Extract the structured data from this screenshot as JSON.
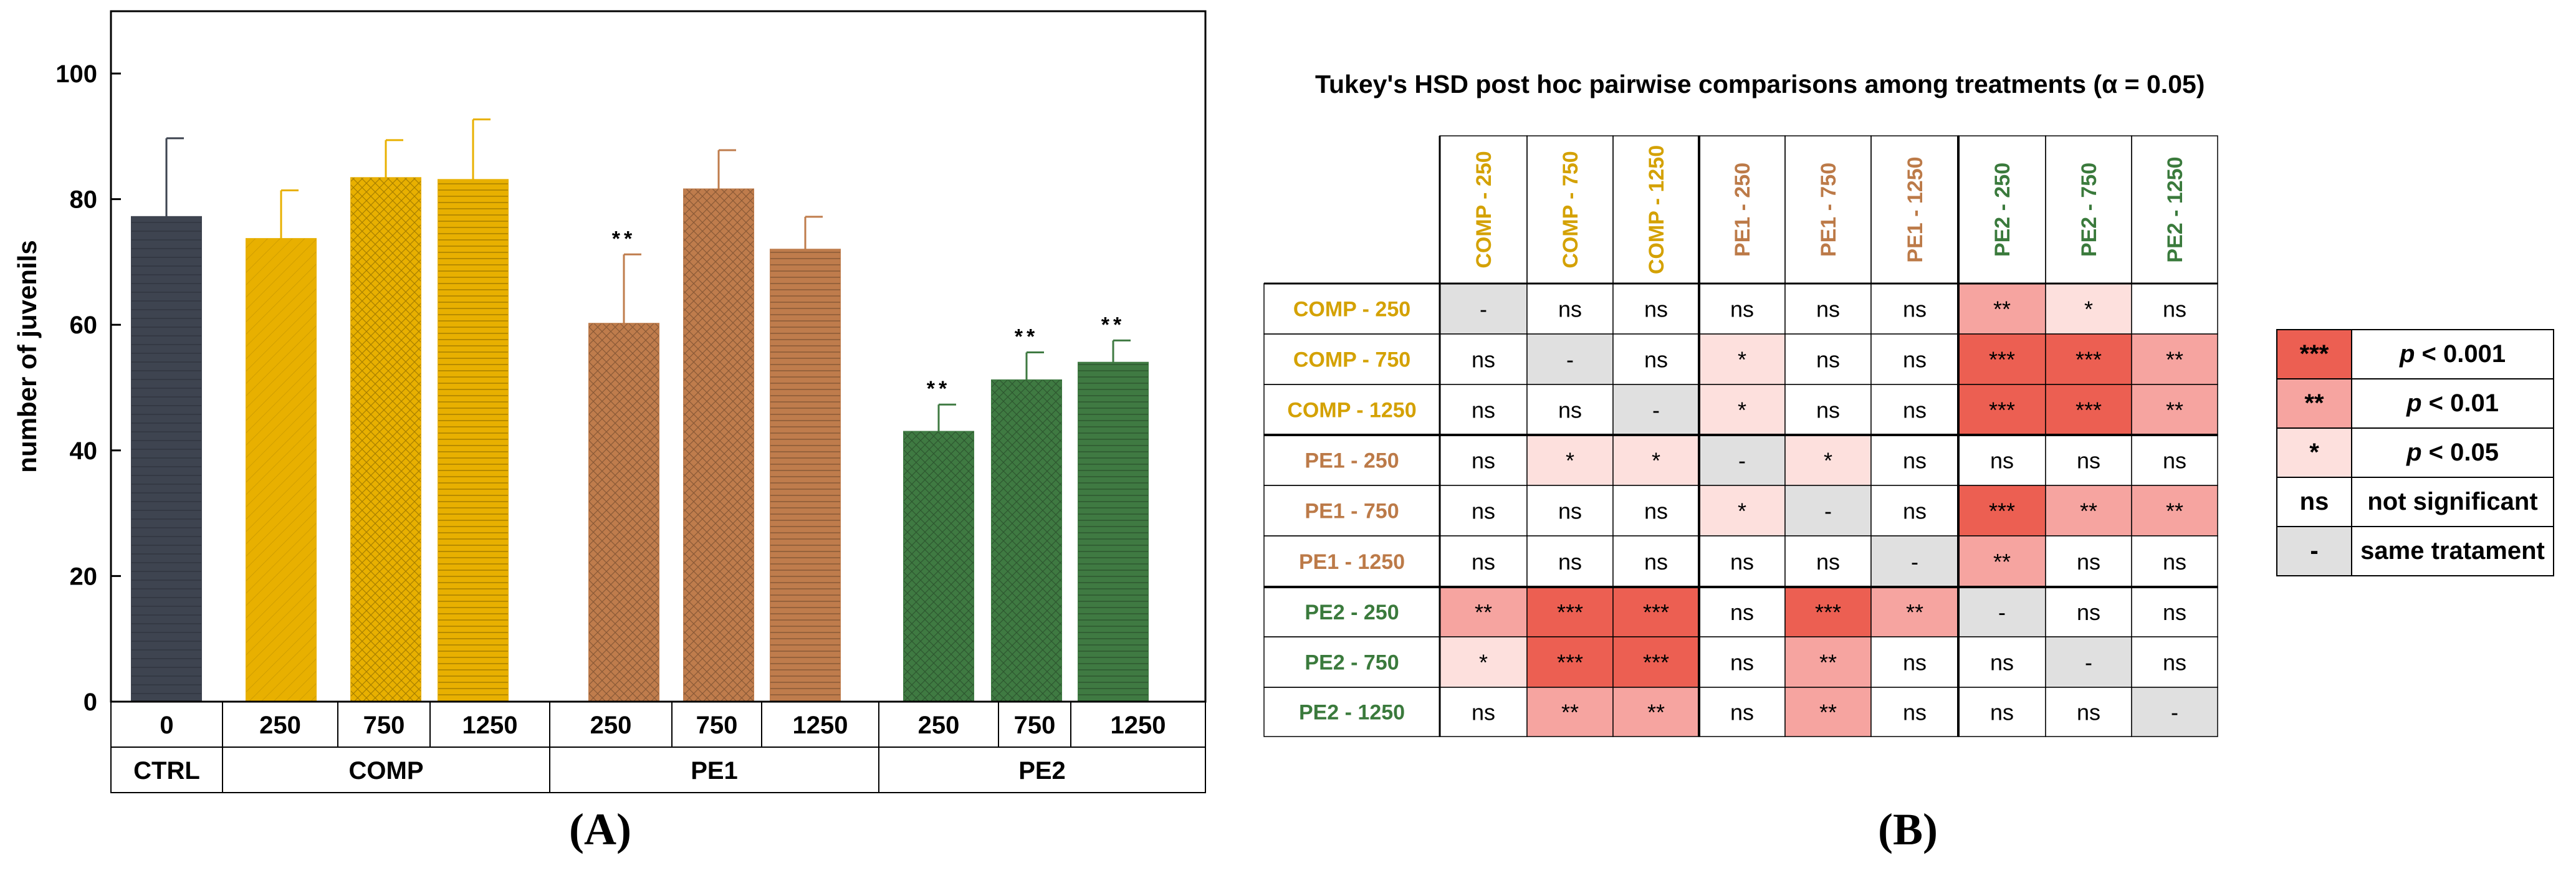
{
  "panel_labels": {
    "a": "(A)",
    "b": "(B)"
  },
  "colors": {
    "ctrl": "#3e4450",
    "comp": "#e8b000",
    "pe1": "#bf7c4c",
    "pe2": "#3f7a42",
    "comp_text": "#d4a100",
    "pe1_text": "#bc7a48",
    "pe2_text": "#3a7a3c",
    "sig3": "#ec5f52",
    "sig2": "#f6a4a0",
    "sig1": "#fde0dd",
    "same": "#e0e0e0",
    "ns": "#ffffff"
  },
  "chart_data": {
    "type": "bar",
    "ylabel": "number of juvenils",
    "ylim": [
      0,
      110
    ],
    "yticks": [
      0,
      20,
      40,
      60,
      80,
      100
    ],
    "groups": [
      {
        "name": "CTRL",
        "color_key": "ctrl",
        "bars": [
          {
            "label": "0",
            "value": 77.2,
            "error": 12.5,
            "sig": ""
          }
        ]
      },
      {
        "name": "COMP",
        "color_key": "comp",
        "bars": [
          {
            "label": "250",
            "value": 73.7,
            "error": 7.7,
            "sig": ""
          },
          {
            "label": "750",
            "value": 83.4,
            "error": 6.0,
            "sig": ""
          },
          {
            "label": "1250",
            "value": 83.1,
            "error": 9.6,
            "sig": ""
          }
        ]
      },
      {
        "name": "PE1",
        "color_key": "pe1",
        "bars": [
          {
            "label": "250",
            "value": 60.2,
            "error": 11.0,
            "sig": "**"
          },
          {
            "label": "750",
            "value": 81.6,
            "error": 6.2,
            "sig": ""
          },
          {
            "label": "1250",
            "value": 72.0,
            "error": 5.2,
            "sig": ""
          }
        ]
      },
      {
        "name": "PE2",
        "color_key": "pe2",
        "bars": [
          {
            "label": "250",
            "value": 43.0,
            "error": 4.3,
            "sig": "**"
          },
          {
            "label": "750",
            "value": 51.2,
            "error": 4.4,
            "sig": "**"
          },
          {
            "label": "1250",
            "value": 54.0,
            "error": 3.5,
            "sig": "**"
          }
        ]
      }
    ]
  },
  "tukey": {
    "title": "Tukey's HSD post hoc pairwise comparisons among treatments (α = 0.05)",
    "treatments": [
      {
        "label": "COMP - 250",
        "group": "comp"
      },
      {
        "label": "COMP - 750",
        "group": "comp"
      },
      {
        "label": "COMP - 1250",
        "group": "comp"
      },
      {
        "label": "PE1 - 250",
        "group": "pe1"
      },
      {
        "label": "PE1 - 750",
        "group": "pe1"
      },
      {
        "label": "PE1 - 1250",
        "group": "pe1"
      },
      {
        "label": "PE2 - 250",
        "group": "pe2"
      },
      {
        "label": "PE2 - 750",
        "group": "pe2"
      },
      {
        "label": "PE2 - 1250",
        "group": "pe2"
      }
    ],
    "matrix": [
      [
        "-",
        "ns",
        "ns",
        "ns",
        "ns",
        "ns",
        "**",
        "*",
        "ns"
      ],
      [
        "ns",
        "-",
        "ns",
        "*",
        "ns",
        "ns",
        "***",
        "***",
        "**"
      ],
      [
        "ns",
        "ns",
        "-",
        "*",
        "ns",
        "ns",
        "***",
        "***",
        "**"
      ],
      [
        "ns",
        "*",
        "*",
        "-",
        "*",
        "ns",
        "ns",
        "ns",
        "ns"
      ],
      [
        "ns",
        "ns",
        "ns",
        "*",
        "-",
        "ns",
        "***",
        "**",
        "**"
      ],
      [
        "ns",
        "ns",
        "ns",
        "ns",
        "ns",
        "-",
        "**",
        "ns",
        "ns"
      ],
      [
        "**",
        "***",
        "***",
        "ns",
        "***",
        "**",
        "-",
        "ns",
        "ns"
      ],
      [
        "*",
        "***",
        "***",
        "ns",
        "**",
        "ns",
        "ns",
        "-",
        "ns"
      ],
      [
        "ns",
        "**",
        "**",
        "ns",
        "**",
        "ns",
        "ns",
        "ns",
        "-"
      ]
    ],
    "legend": [
      {
        "symbol": "***",
        "p": "p",
        "text": " < 0.001",
        "color_key": "sig3"
      },
      {
        "symbol": "**",
        "p": "p",
        "text": " < 0.01",
        "color_key": "sig2"
      },
      {
        "symbol": "*",
        "p": "p",
        "text": " < 0.05",
        "color_key": "sig1"
      },
      {
        "symbol": "ns",
        "p": "",
        "text": "not significant",
        "color_key": "ns"
      },
      {
        "symbol": "-",
        "p": "",
        "text": "same tratament",
        "color_key": "same"
      }
    ]
  }
}
